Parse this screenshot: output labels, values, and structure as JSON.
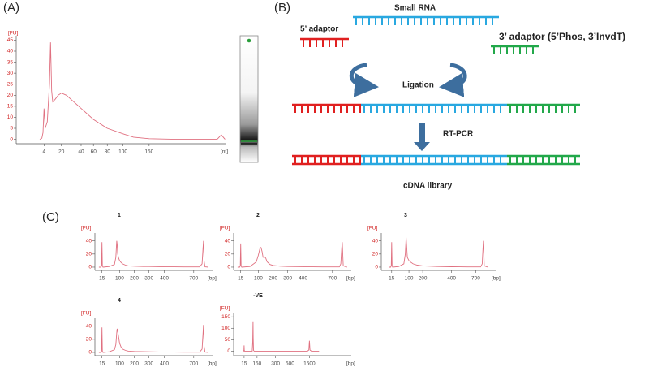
{
  "panel_a": {
    "label": "(A)",
    "chart": {
      "type": "line",
      "y_label": "[FU]",
      "x_label": "[nt]",
      "color": "#e07080",
      "ylim": [
        -2,
        47
      ],
      "yticks": [
        0,
        5,
        10,
        15,
        20,
        25,
        30,
        35,
        40,
        45
      ],
      "xticks": [
        4,
        20,
        40,
        60,
        80,
        100,
        150
      ],
      "x": [
        0,
        2,
        3,
        4,
        5,
        7,
        9,
        10,
        11,
        12,
        14,
        17,
        20,
        25,
        30,
        40,
        60,
        80,
        100,
        120,
        150,
        200,
        260,
        280,
        288,
        295
      ],
      "values": [
        0,
        0.5,
        3,
        14,
        5,
        8,
        25,
        44,
        22,
        17,
        18,
        20,
        21,
        20,
        18,
        14,
        9,
        5,
        2.5,
        1,
        0.3,
        0,
        0,
        0,
        2,
        0
      ]
    }
  },
  "panel_b": {
    "label": "(B)",
    "small_rna": "Small RNA",
    "adaptor_5": "5’ adaptor",
    "adaptor_3": "3’ adaptor (5’Phos, 3’InvdT)",
    "ligation": "Ligation",
    "rt_pcr": "RT-PCR",
    "cdna_library": "cDNA library"
  },
  "panel_c": {
    "label": "(C)",
    "charts": [
      {
        "type": "line",
        "title": "1",
        "y_label": "[FU]",
        "x_label": "[bp]",
        "color": "#e07080",
        "ylim": [
          -5,
          52
        ],
        "yticks": [
          0,
          20,
          40
        ],
        "xticks": [
          15,
          100,
          200,
          300,
          400,
          700
        ],
        "x": [
          0,
          10,
          13,
          15,
          17,
          20,
          50,
          75,
          82,
          86,
          88,
          91,
          95,
          100,
          110,
          120,
          140,
          160,
          200,
          260,
          300,
          400,
          500,
          600,
          700,
          760,
          785,
          795,
          800,
          805,
          815,
          850
        ],
        "values": [
          0,
          0,
          2,
          38,
          2,
          0,
          1,
          4,
          15,
          40,
          35,
          20,
          14,
          10,
          7,
          5,
          3,
          2,
          1.5,
          1,
          1,
          0.5,
          0.5,
          0.3,
          0.3,
          0.3,
          5,
          30,
          40,
          10,
          0.5,
          0
        ]
      },
      {
        "type": "line",
        "title": "2",
        "y_label": "[FU]",
        "x_label": "[bp]",
        "color": "#e07080",
        "ylim": [
          -5,
          52
        ],
        "yticks": [
          0,
          20,
          40
        ],
        "xticks": [
          15,
          100,
          200,
          300,
          400,
          700
        ],
        "x": [
          0,
          10,
          13,
          15,
          17,
          20,
          60,
          90,
          100,
          110,
          118,
          125,
          132,
          140,
          150,
          160,
          180,
          200,
          250,
          300,
          400,
          500,
          600,
          700,
          770,
          785,
          795,
          800,
          810,
          850
        ],
        "values": [
          0,
          0,
          2,
          36,
          2,
          0,
          1,
          8,
          18,
          28,
          30,
          24,
          15,
          16,
          14,
          8,
          4,
          2.5,
          1.5,
          1,
          0.7,
          0.5,
          0.3,
          0.3,
          0.3,
          5,
          30,
          38,
          2,
          0
        ]
      },
      {
        "type": "line",
        "title": "3",
        "y_label": "[FU]",
        "x_label": "[bp]",
        "color": "#e07080",
        "ylim": [
          -5,
          52
        ],
        "yticks": [
          0,
          20,
          40
        ],
        "xticks": [
          15,
          100,
          200,
          400,
          700
        ],
        "x": [
          0,
          10,
          13,
          15,
          17,
          20,
          50,
          75,
          82,
          86,
          88,
          92,
          100,
          110,
          130,
          160,
          200,
          300,
          400,
          500,
          600,
          700,
          760,
          780,
          790,
          795,
          805,
          850
        ],
        "values": [
          0,
          0,
          2,
          38,
          2,
          0,
          1,
          5,
          20,
          45,
          35,
          15,
          10,
          8,
          5,
          3,
          2,
          1,
          0.6,
          0.4,
          0.3,
          0.3,
          0.3,
          5,
          30,
          40,
          2,
          0
        ]
      },
      {
        "type": "line",
        "title": "4",
        "y_label": "[FU]",
        "x_label": "[bp]",
        "color": "#e07080",
        "ylim": [
          -5,
          52
        ],
        "yticks": [
          0,
          20,
          40
        ],
        "xticks": [
          15,
          100,
          200,
          300,
          400,
          700
        ],
        "x": [
          0,
          10,
          13,
          15,
          17,
          20,
          50,
          75,
          82,
          86,
          88,
          92,
          96,
          100,
          110,
          120,
          140,
          160,
          200,
          300,
          400,
          500,
          600,
          700,
          760,
          785,
          795,
          800,
          805,
          815,
          850
        ],
        "values": [
          0,
          0,
          2,
          38,
          2,
          0,
          1,
          4,
          12,
          30,
          36,
          30,
          22,
          14,
          8,
          5,
          3,
          2,
          1.5,
          1,
          0.5,
          0.5,
          0.3,
          0.3,
          0.3,
          5,
          30,
          42,
          10,
          0.5,
          0
        ]
      },
      {
        "type": "line",
        "title": "-VE",
        "y_label": "[FU]",
        "x_label": "[bp]",
        "color": "#e07080",
        "ylim": [
          -20,
          165
        ],
        "yticks": [
          0,
          50,
          100,
          150
        ],
        "xticks": [
          15,
          150,
          300,
          500,
          1500
        ],
        "x": [
          0,
          10,
          13,
          15,
          17,
          20,
          60,
          100,
          105,
          108,
          110,
          113,
          120,
          150,
          300,
          500,
          1000,
          1400,
          1470,
          1500,
          1530,
          1600,
          2000
        ],
        "values": [
          0,
          0,
          5,
          25,
          5,
          0,
          0,
          0,
          40,
          130,
          60,
          3,
          0,
          0,
          0,
          0,
          0,
          0,
          5,
          45,
          5,
          0,
          0
        ]
      }
    ]
  }
}
